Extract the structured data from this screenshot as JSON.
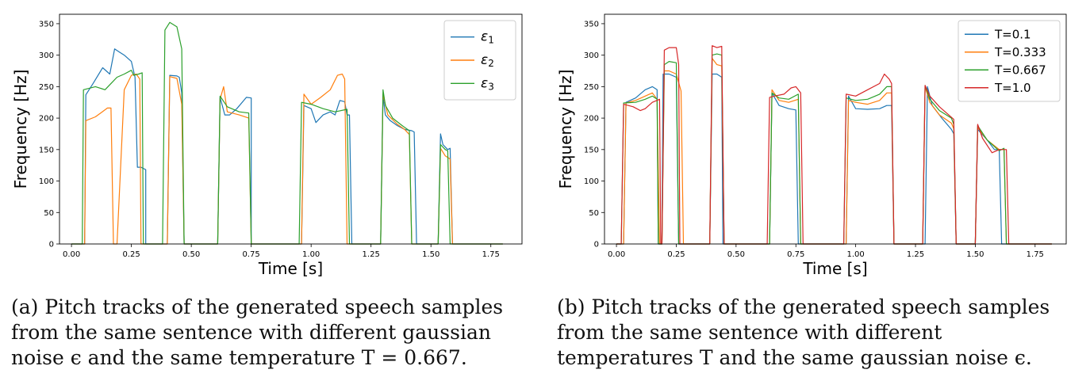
{
  "chart_data": [
    {
      "type": "line",
      "xlabel": "Time [s]",
      "ylabel": "Frequency [Hz]",
      "xlim": [
        -0.05,
        1.88
      ],
      "ylim": [
        0,
        365
      ],
      "xticks": [
        "0.00",
        "0.25",
        "0.50",
        "0.75",
        "1.00",
        "1.25",
        "1.50",
        "1.75"
      ],
      "yticks": [
        "0",
        "50",
        "100",
        "150",
        "200",
        "250",
        "300",
        "350"
      ],
      "grid": false,
      "legend": "top-right",
      "caption": "(a) Pitch tracks of the generated speech samples from the same sentence with different gaussian noise ϵ and the same temperature T = 0.667.",
      "series": [
        {
          "name": "ε1",
          "color": "#1f77b4",
          "x": [
            0,
            0.055,
            0.06,
            0.09,
            0.13,
            0.16,
            0.18,
            0.2,
            0.22,
            0.25,
            0.265,
            0.275,
            0.29,
            0.31,
            0.31,
            0.31,
            0.4,
            0.41,
            0.44,
            0.45,
            0.46,
            0.47,
            0.61,
            0.62,
            0.64,
            0.66,
            0.69,
            0.73,
            0.75,
            0.75,
            0.76,
            0.96,
            0.97,
            1.0,
            1.02,
            1.05,
            1.08,
            1.1,
            1.12,
            1.14,
            1.15,
            1.16,
            1.17,
            1.29,
            1.3,
            1.31,
            1.33,
            1.36,
            1.39,
            1.42,
            1.43,
            1.44,
            1.53,
            1.54,
            1.55,
            1.57,
            1.58,
            1.59,
            1.8
          ],
          "y": [
            0,
            0,
            237,
            255,
            280,
            270,
            310,
            305,
            300,
            290,
            265,
            122,
            122,
            118,
            110,
            0,
            0,
            268,
            267,
            265,
            240,
            0,
            0,
            233,
            205,
            205,
            215,
            233,
            232,
            0,
            0,
            0,
            220,
            215,
            193,
            205,
            210,
            205,
            228,
            226,
            205,
            205,
            0,
            0,
            235,
            205,
            196,
            188,
            182,
            180,
            178,
            0,
            0,
            175,
            158,
            150,
            152,
            0,
            0
          ]
        },
        {
          "name": "ε2",
          "color": "#ff7f0e",
          "x": [
            0,
            0.055,
            0.06,
            0.1,
            0.15,
            0.165,
            0.175,
            0.19,
            0.22,
            0.25,
            0.27,
            0.285,
            0.29,
            0.4,
            0.41,
            0.44,
            0.46,
            0.47,
            0.61,
            0.62,
            0.635,
            0.65,
            0.7,
            0.74,
            0.75,
            0.96,
            0.97,
            1.0,
            1.04,
            1.08,
            1.11,
            1.13,
            1.14,
            1.15,
            1.29,
            1.3,
            1.32,
            1.36,
            1.39,
            1.41,
            1.42,
            1.53,
            1.54,
            1.56,
            1.58,
            1.59,
            1.8
          ],
          "y": [
            0,
            0,
            196,
            202,
            216,
            216,
            0,
            0,
            245,
            268,
            270,
            262,
            0,
            0,
            266,
            263,
            222,
            0,
            0,
            230,
            250,
            210,
            205,
            200,
            0,
            0,
            238,
            222,
            233,
            245,
            268,
            270,
            262,
            0,
            0,
            238,
            205,
            190,
            182,
            174,
            0,
            0,
            152,
            140,
            135,
            0,
            0
          ]
        },
        {
          "name": "ε3",
          "color": "#2ca02c",
          "x": [
            0,
            0.045,
            0.05,
            0.1,
            0.14,
            0.165,
            0.19,
            0.22,
            0.25,
            0.26,
            0.28,
            0.295,
            0.3,
            0.31,
            0.31,
            0.38,
            0.39,
            0.41,
            0.44,
            0.46,
            0.47,
            0.61,
            0.62,
            0.65,
            0.7,
            0.74,
            0.75,
            0.95,
            0.96,
            1.0,
            1.05,
            1.1,
            1.15,
            1.16,
            1.29,
            1.3,
            1.31,
            1.34,
            1.38,
            1.41,
            1.42,
            1.53,
            1.54,
            1.56,
            1.57,
            1.58,
            1.8
          ],
          "y": [
            0,
            0,
            245,
            250,
            245,
            255,
            265,
            270,
            276,
            268,
            270,
            272,
            0,
            0,
            0,
            0,
            340,
            352,
            345,
            310,
            0,
            0,
            235,
            218,
            210,
            208,
            0,
            0,
            225,
            222,
            215,
            210,
            214,
            0,
            0,
            245,
            220,
            200,
            188,
            180,
            0,
            0,
            158,
            150,
            148,
            0,
            0
          ]
        }
      ]
    },
    {
      "type": "line",
      "xlabel": "Time [s]",
      "ylabel": "Frequency [Hz]",
      "xlim": [
        -0.05,
        1.88
      ],
      "ylim": [
        0,
        365
      ],
      "xticks": [
        "0.00",
        "0.25",
        "0.50",
        "0.75",
        "1.00",
        "1.25",
        "1.50",
        "1.75"
      ],
      "yticks": [
        "0",
        "50",
        "100",
        "150",
        "200",
        "250",
        "300",
        "350"
      ],
      "grid": false,
      "legend": "top-right",
      "caption": "(b) Pitch tracks of the generated speech samples from the same sentence with different temperatures T and the same gaussian noise ϵ.",
      "series": [
        {
          "name": "T=0.1",
          "color": "#1f77b4",
          "x": [
            0,
            0.03,
            0.04,
            0.08,
            0.12,
            0.15,
            0.17,
            0.175,
            0.19,
            0.195,
            0.22,
            0.25,
            0.26,
            0.28,
            0.28,
            0.29,
            0.39,
            0.4,
            0.42,
            0.44,
            0.445,
            0.445,
            0.64,
            0.65,
            0.68,
            0.72,
            0.75,
            0.76,
            0.77,
            0.96,
            0.97,
            1.0,
            1.05,
            1.1,
            1.13,
            1.15,
            1.16,
            1.28,
            1.29,
            1.3,
            1.32,
            1.36,
            1.4,
            1.41,
            1.42,
            1.5,
            1.51,
            1.55,
            1.58,
            1.6,
            1.61,
            1.82
          ],
          "y": [
            0,
            0,
            225,
            232,
            245,
            250,
            245,
            0,
            0,
            270,
            270,
            265,
            0,
            0,
            0,
            0,
            0,
            270,
            270,
            265,
            0,
            0,
            0,
            240,
            220,
            215,
            213,
            0,
            0,
            0,
            235,
            215,
            214,
            215,
            220,
            220,
            0,
            0,
            0,
            250,
            220,
            200,
            182,
            175,
            0,
            0,
            182,
            165,
            150,
            150,
            0,
            0
          ]
        },
        {
          "name": "T=0.333",
          "color": "#ff7f0e",
          "x": [
            0,
            0.03,
            0.04,
            0.08,
            0.12,
            0.15,
            0.17,
            0.18,
            0.19,
            0.2,
            0.22,
            0.25,
            0.27,
            0.28,
            0.29,
            0.39,
            0.4,
            0.42,
            0.44,
            0.45,
            0.64,
            0.65,
            0.68,
            0.72,
            0.76,
            0.77,
            0.96,
            0.97,
            1.0,
            1.05,
            1.1,
            1.13,
            1.15,
            1.16,
            1.28,
            1.29,
            1.31,
            1.35,
            1.4,
            1.41,
            1.42,
            1.5,
            1.51,
            1.55,
            1.6,
            1.62,
            1.63,
            1.82
          ],
          "y": [
            0,
            0,
            224,
            228,
            235,
            240,
            230,
            0,
            0,
            275,
            275,
            270,
            243,
            0,
            0,
            0,
            295,
            285,
            283,
            0,
            0,
            245,
            228,
            225,
            230,
            0,
            0,
            228,
            225,
            222,
            228,
            240,
            240,
            0,
            0,
            250,
            225,
            205,
            192,
            183,
            0,
            0,
            185,
            165,
            150,
            150,
            0,
            0
          ]
        },
        {
          "name": "T=0.667",
          "color": "#2ca02c",
          "x": [
            0,
            0.02,
            0.03,
            0.08,
            0.12,
            0.15,
            0.17,
            0.175,
            0.19,
            0.2,
            0.22,
            0.25,
            0.26,
            0.265,
            0.28,
            0.39,
            0.4,
            0.42,
            0.44,
            0.45,
            0.64,
            0.65,
            0.68,
            0.72,
            0.76,
            0.77,
            0.95,
            0.96,
            1.0,
            1.05,
            1.1,
            1.13,
            1.15,
            1.16,
            1.28,
            1.29,
            1.31,
            1.35,
            1.4,
            1.41,
            1.42,
            1.5,
            1.51,
            1.55,
            1.6,
            1.62,
            1.63,
            1.82
          ],
          "y": [
            0,
            0,
            224,
            225,
            230,
            235,
            230,
            0,
            0,
            285,
            290,
            288,
            0,
            0,
            0,
            0,
            300,
            302,
            300,
            0,
            0,
            240,
            232,
            230,
            238,
            0,
            0,
            232,
            228,
            230,
            238,
            250,
            250,
            0,
            0,
            252,
            230,
            212,
            200,
            190,
            0,
            0,
            188,
            165,
            148,
            152,
            0,
            0
          ]
        },
        {
          "name": "T=1.0",
          "color": "#d62728",
          "x": [
            0,
            0.02,
            0.03,
            0.07,
            0.1,
            0.12,
            0.15,
            0.18,
            0.185,
            0.19,
            0.2,
            0.22,
            0.25,
            0.26,
            0.265,
            0.28,
            0.39,
            0.4,
            0.42,
            0.44,
            0.45,
            0.63,
            0.64,
            0.66,
            0.7,
            0.73,
            0.75,
            0.77,
            0.78,
            0.95,
            0.96,
            1.0,
            1.05,
            1.1,
            1.12,
            1.14,
            1.15,
            1.16,
            1.28,
            1.29,
            1.31,
            1.35,
            1.41,
            1.42,
            1.5,
            1.51,
            1.53,
            1.57,
            1.6,
            1.63,
            1.64,
            1.82
          ],
          "y": [
            0,
            0,
            222,
            218,
            212,
            215,
            225,
            230,
            0,
            0,
            308,
            312,
            312,
            285,
            0,
            0,
            0,
            315,
            312,
            314,
            0,
            0,
            233,
            235,
            238,
            248,
            250,
            240,
            0,
            0,
            238,
            235,
            245,
            255,
            270,
            262,
            255,
            0,
            0,
            252,
            235,
            218,
            198,
            0,
            0,
            190,
            168,
            145,
            150,
            150,
            0,
            0
          ]
        }
      ]
    }
  ]
}
